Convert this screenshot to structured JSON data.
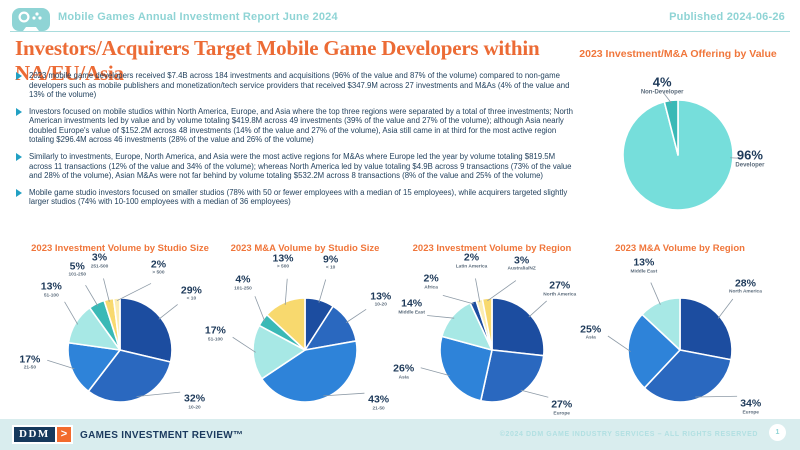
{
  "header": {
    "title": "Mobile Games Annual Investment Report June 2024",
    "published": "Published 2024-06-26"
  },
  "title": "Investors/Acquirers Target Mobile Game Developers within NA/EU/Asia",
  "bullets": [
    "2023 mobile game developers received $7.4B across 184 investments and acquisitions (96% of the value and 87% of the volume) compared to non-game developers such as mobile publishers and monetization/tech service providers that received $347.9M across 27 investments and M&As (4% of the value and 13% of the volume)",
    "Investors focused on mobile studios within North America, Europe, and Asia where the top three regions were separated by a total of three investments; North American investments led by value and by volume totaling $419.8M across 49 investments (39% of the value and 27% of the volume); although Asia nearly doubled Europe's value of $152.2M across 48 investments (14% of the value and 27% of the volume), Asia still came in at third for the most active region totaling $296.4M across 46 investments (28% of the value and 26% of the volume)",
    "Similarly to investments, Europe, North America, and Asia were the most active regions for M&As where Europe led the year by volume totaling $819.5M across 11 transactions (12% of the value and 34% of the volume); whereas North America led by value totaling $4.9B across 9 transactions (73% of the value and 28% of the volume), Asian M&As were not far behind by volume totaling $532.2M across 8 transactions (8% of the value and 25% of the volume)",
    "Mobile game studio investors focused on smaller studios (78% with 50 or fewer employees with a median of 15 employees), while acquirers targeted slightly larger studios (74% with 10-100 employees with a median of 36 employees)"
  ],
  "chart_data": [
    {
      "type": "pie",
      "title": "2023 Investment/M&A Offering by Value",
      "legend_position": "none",
      "slices": [
        {
          "label": "Developer",
          "value": 96,
          "color": "#76dedb"
        },
        {
          "label": "Non-Developer",
          "value": 4,
          "color": "#3ab9b6"
        }
      ]
    },
    {
      "type": "pie",
      "title": "2023 Investment Volume by Studio Size",
      "legend_position": "none",
      "slices": [
        {
          "label": "< 10",
          "value": 29,
          "color": "#1c4da0"
        },
        {
          "label": "10-20",
          "value": 32,
          "color": "#2a68bf"
        },
        {
          "label": "21-50",
          "value": 17,
          "color": "#2e83d9"
        },
        {
          "label": "51-100",
          "value": 13,
          "color": "#a7e8e5"
        },
        {
          "label": "101-250",
          "value": 5,
          "color": "#3ab9b6"
        },
        {
          "label": "251-500",
          "value": 3,
          "color": "#f8d96e"
        },
        {
          "label": "> 500",
          "value": 2,
          "color": "#fcedb2"
        }
      ]
    },
    {
      "type": "pie",
      "title": "2023 M&A Volume by Studio Size",
      "legend_position": "none",
      "slices": [
        {
          "label": "< 10",
          "value": 9,
          "color": "#1c4da0"
        },
        {
          "label": "10-20",
          "value": 13,
          "color": "#2a68bf"
        },
        {
          "label": "21-50",
          "value": 43,
          "color": "#2e83d9"
        },
        {
          "label": "51-100",
          "value": 17,
          "color": "#a7e8e5"
        },
        {
          "label": "101-250",
          "value": 4,
          "color": "#3ab9b6"
        },
        {
          "label": "> 500",
          "value": 13,
          "color": "#f8d96e"
        }
      ]
    },
    {
      "type": "pie",
      "title": "2023 Investment Volume by Region",
      "legend_position": "none",
      "slices": [
        {
          "label": "North America",
          "value": 27,
          "color": "#1c4da0"
        },
        {
          "label": "Europe",
          "value": 27,
          "color": "#2a68bf"
        },
        {
          "label": "Asia",
          "value": 26,
          "color": "#2e83d9"
        },
        {
          "label": "Middle East",
          "value": 14,
          "color": "#a7e8e5"
        },
        {
          "label": "Africa",
          "value": 2,
          "color": "#1c4da0"
        },
        {
          "label": "Latin America",
          "value": 2,
          "color": "#fcedb2"
        },
        {
          "label": "Australia/NZ",
          "value": 3,
          "color": "#f8d96e"
        }
      ]
    },
    {
      "type": "pie",
      "title": "2023 M&A Volume by Region",
      "legend_position": "none",
      "slices": [
        {
          "label": "North America",
          "value": 28,
          "color": "#1c4da0"
        },
        {
          "label": "Europe",
          "value": 34,
          "color": "#2a68bf"
        },
        {
          "label": "Asia",
          "value": 25,
          "color": "#2e83d9"
        },
        {
          "label": "Middle East",
          "value": 13,
          "color": "#a7e8e5"
        }
      ]
    }
  ],
  "footer": {
    "logo_text": "DDM",
    "logo_chevron": ">",
    "brand": "GAMES INVESTMENT REVIEW™",
    "copyright": "©2024 DDM GAME INDUSTRY SERVICES – ALL RIGHTS RESERVED",
    "page": "1"
  },
  "colors": {
    "accent_teal": "#8fd4d5",
    "accent_orange": "#ec6b35",
    "chart_title_orange": "#f0763b",
    "body_navy": "#24435f",
    "footer_strip": "#d9edee"
  }
}
